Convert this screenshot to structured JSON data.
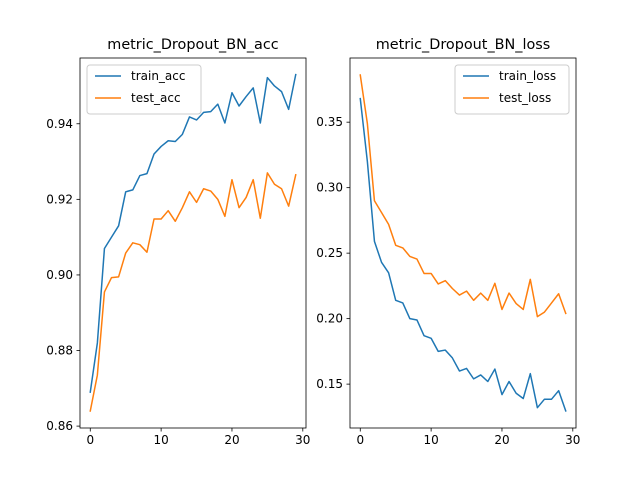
{
  "chart_data": [
    {
      "type": "line",
      "title": "metric_Dropout_BN_acc",
      "xlabel": "",
      "ylabel": "",
      "xlim": [
        -1.45,
        30.45
      ],
      "ylim": [
        0.8595,
        0.9574
      ],
      "xticks": [
        0,
        10,
        20,
        30
      ],
      "yticks": [
        0.86,
        0.88,
        0.9,
        0.92,
        0.94
      ],
      "ytick_labels": [
        "0.86",
        "0.88",
        "0.90",
        "0.92",
        "0.94"
      ],
      "legend_position": "upper-left",
      "grid": false,
      "x": [
        0,
        1,
        2,
        3,
        4,
        5,
        6,
        7,
        8,
        9,
        10,
        11,
        12,
        13,
        14,
        15,
        16,
        17,
        18,
        19,
        20,
        21,
        22,
        23,
        24,
        25,
        26,
        27,
        28,
        29
      ],
      "series": [
        {
          "name": "train_acc",
          "color": "#1f77b4",
          "values": [
            0.869,
            0.882,
            0.907,
            0.91,
            0.913,
            0.922,
            0.9225,
            0.9263,
            0.9268,
            0.932,
            0.934,
            0.9355,
            0.9353,
            0.9372,
            0.9418,
            0.941,
            0.943,
            0.9432,
            0.9452,
            0.9402,
            0.9482,
            0.9447,
            0.9472,
            0.9495,
            0.9402,
            0.9522,
            0.95,
            0.9485,
            0.9438,
            0.953
          ]
        },
        {
          "name": "test_acc",
          "color": "#ff7f0e",
          "values": [
            0.864,
            0.8735,
            0.8955,
            0.8993,
            0.8995,
            0.9058,
            0.9085,
            0.908,
            0.906,
            0.9148,
            0.9148,
            0.917,
            0.9142,
            0.9178,
            0.922,
            0.9192,
            0.9228,
            0.9222,
            0.92,
            0.9155,
            0.9252,
            0.9178,
            0.9205,
            0.9252,
            0.915,
            0.927,
            0.924,
            0.9228,
            0.9182,
            0.9265
          ]
        }
      ]
    },
    {
      "type": "line",
      "title": "metric_Dropout_BN_loss",
      "xlabel": "",
      "ylabel": "",
      "xlim": [
        -1.45,
        30.45
      ],
      "ylim": [
        0.1165,
        0.399
      ],
      "xticks": [
        0,
        10,
        20,
        30
      ],
      "yticks": [
        0.15,
        0.2,
        0.25,
        0.3,
        0.35
      ],
      "ytick_labels": [
        "0.15",
        "0.20",
        "0.25",
        "0.30",
        "0.35"
      ],
      "legend_position": "upper-right",
      "grid": false,
      "x": [
        0,
        1,
        2,
        3,
        4,
        5,
        6,
        7,
        8,
        9,
        10,
        11,
        12,
        13,
        14,
        15,
        16,
        17,
        18,
        19,
        20,
        21,
        22,
        23,
        24,
        25,
        26,
        27,
        28,
        29
      ],
      "series": [
        {
          "name": "train_loss",
          "color": "#1f77b4",
          "values": [
            0.368,
            0.32,
            0.259,
            0.243,
            0.235,
            0.214,
            0.212,
            0.2,
            0.199,
            0.187,
            0.185,
            0.175,
            0.176,
            0.17,
            0.16,
            0.162,
            0.154,
            0.157,
            0.152,
            0.1615,
            0.142,
            0.152,
            0.143,
            0.139,
            0.158,
            0.132,
            0.1385,
            0.1385,
            0.145,
            0.1295
          ]
        },
        {
          "name": "test_loss",
          "color": "#ff7f0e",
          "values": [
            0.386,
            0.349,
            0.29,
            0.281,
            0.272,
            0.256,
            0.254,
            0.2475,
            0.2455,
            0.2345,
            0.2345,
            0.2265,
            0.229,
            0.223,
            0.218,
            0.221,
            0.214,
            0.2195,
            0.214,
            0.227,
            0.207,
            0.2195,
            0.2115,
            0.207,
            0.23,
            0.2015,
            0.205,
            0.212,
            0.219,
            0.204
          ]
        }
      ]
    }
  ]
}
